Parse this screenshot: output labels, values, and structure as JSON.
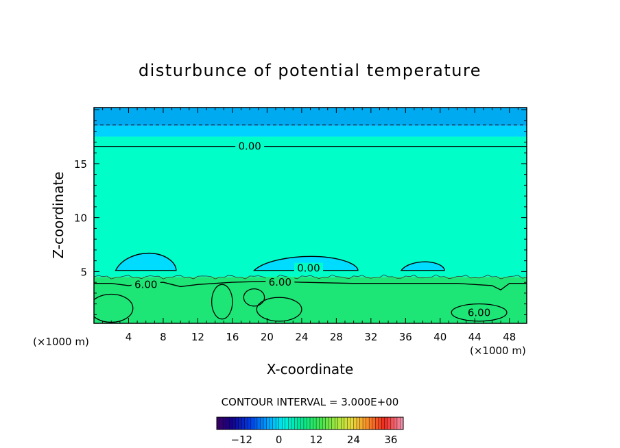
{
  "chart_data": {
    "type": "heatmap",
    "title": "disturbunce of potential temperature",
    "xlabel": "X-coordinate",
    "ylabel": "Z-coordinate",
    "x_unit_left": "(×1000 m)",
    "x_unit_right": "(×1000 m)",
    "xlim": [
      0,
      50
    ],
    "ylim": [
      0.2,
      20.2
    ],
    "x_ticks": [
      "4",
      "8",
      "12",
      "16",
      "20",
      "24",
      "28",
      "32",
      "36",
      "40",
      "44",
      "48"
    ],
    "y_ticks": [
      "5",
      "10",
      "15"
    ],
    "contour_interval_label": "CONTOUR INTERVAL = 3.000E+00",
    "contour_labels": [
      {
        "text": "0.00",
        "x": 18,
        "z": 16.6
      },
      {
        "text": "0.00",
        "x": 24.8,
        "z": 5.3
      },
      {
        "text": "6.00",
        "x": 6,
        "z": 3.8
      },
      {
        "text": "6.00",
        "x": 21.5,
        "z": 4.0
      },
      {
        "text": "6.00",
        "x": 44.5,
        "z": 1.2
      }
    ],
    "field_bands": [
      {
        "z_from": 0.2,
        "z_to": 4.5,
        "value": 7,
        "color": "#1ee676"
      },
      {
        "z_from": 4.5,
        "z_to": 17.5,
        "value": 1,
        "color": "#00ffc8"
      },
      {
        "z_from": 17.5,
        "z_to": 18.5,
        "value": -2,
        "color": "#00d2ff"
      },
      {
        "z_from": 18.5,
        "z_to": 20.2,
        "value": -5,
        "color": "#00aaf0"
      }
    ],
    "negative_cells": [
      {
        "x_from": 2.5,
        "x_to": 9.5,
        "z_from": 5.1,
        "z_to": 6.7
      },
      {
        "x_from": 18.5,
        "x_to": 30.5,
        "z_from": 5.1,
        "z_to": 6.4
      },
      {
        "x_from": 35.5,
        "x_to": 40.5,
        "z_from": 5.1,
        "z_to": 5.9
      }
    ],
    "colorbar": {
      "range": [
        -20,
        40
      ],
      "tick_labels": [
        "-12",
        "0",
        "12",
        "24",
        "36"
      ]
    }
  }
}
